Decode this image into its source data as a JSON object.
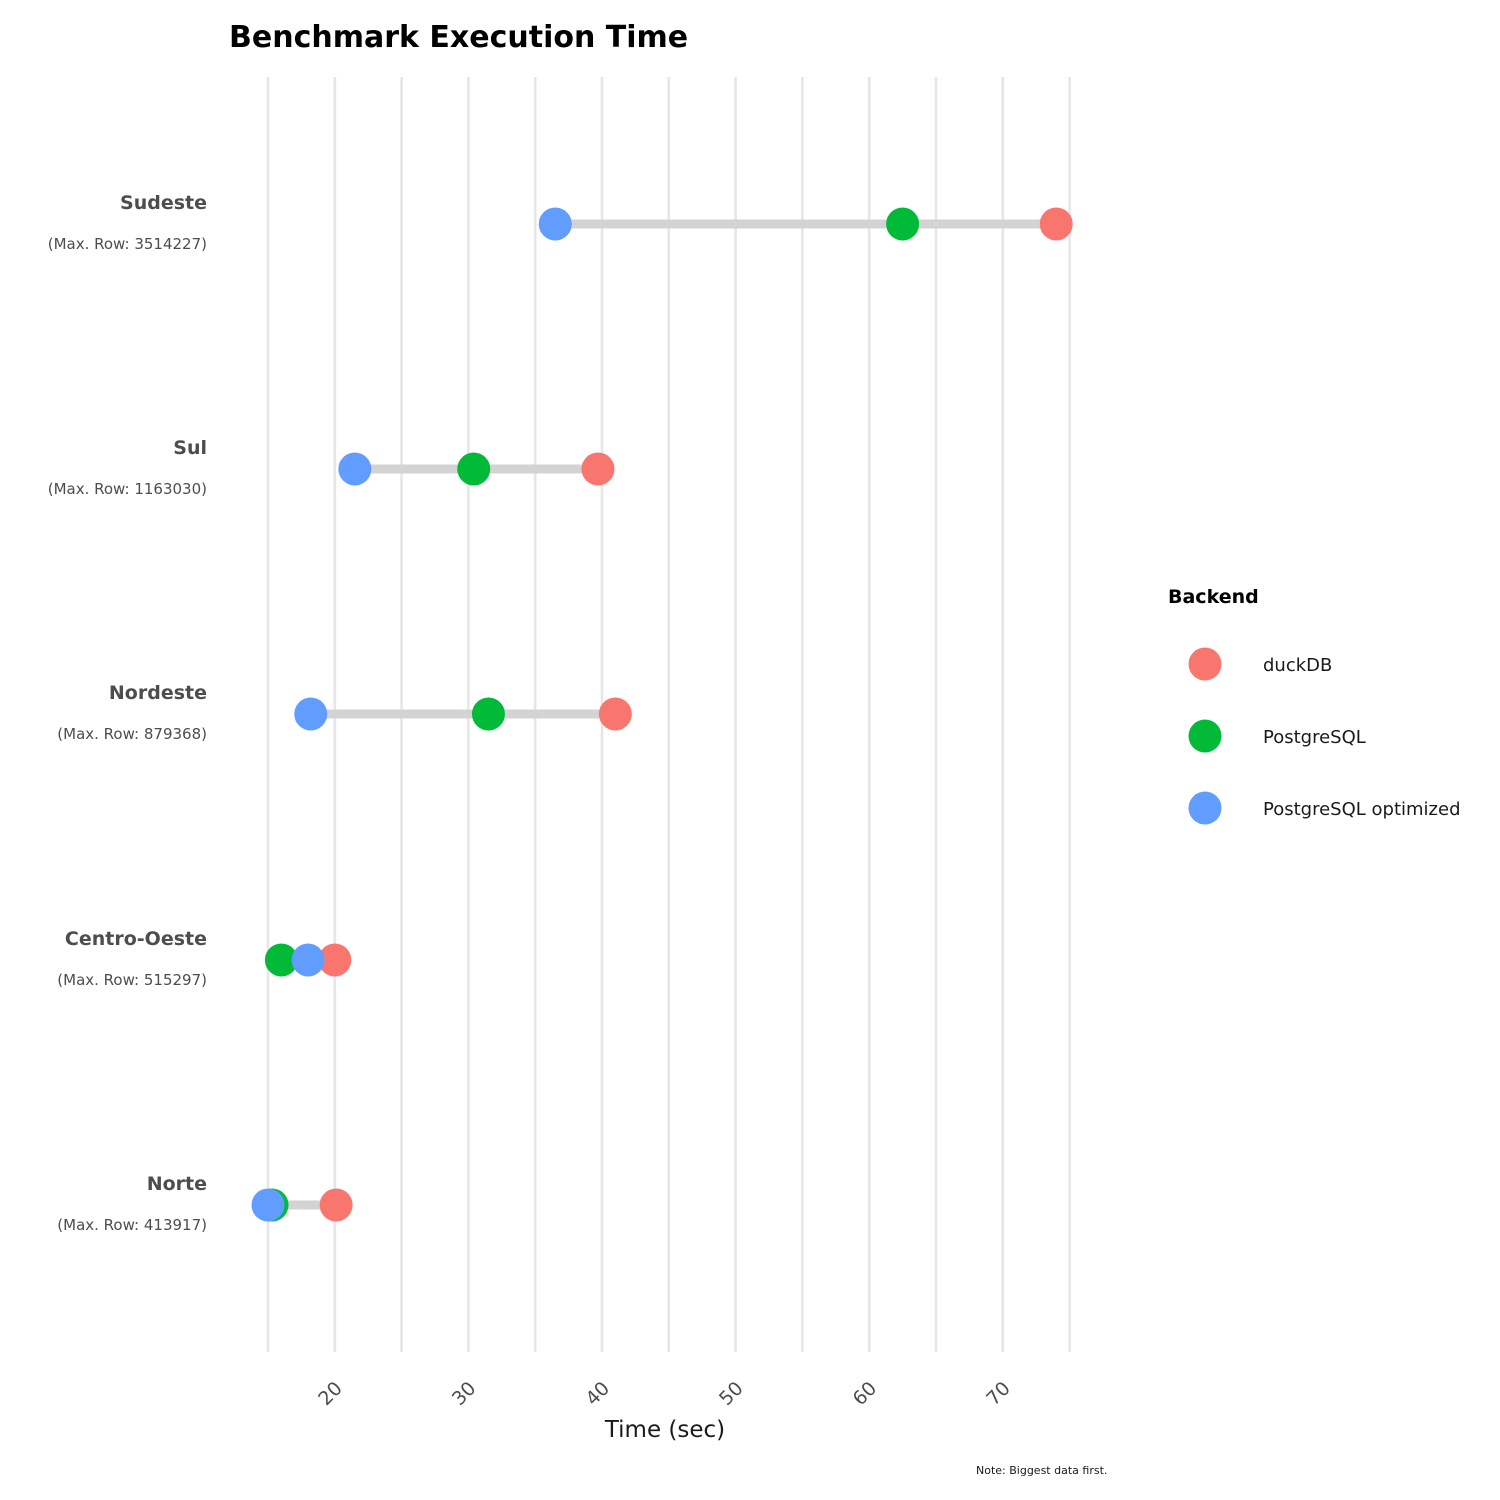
{
  "chart_data": {
    "type": "dumbbell",
    "title": "Benchmark Execution Time",
    "xlabel": "Time (sec)",
    "ylabel": "",
    "xlim": [
      15,
      75
    ],
    "x_ticks": [
      20,
      30,
      40,
      50,
      60,
      70
    ],
    "x_minor_ticks": [
      15,
      25,
      35,
      45,
      55,
      65,
      75
    ],
    "caption": "Note: Biggest data first.",
    "legend": {
      "title": "Backend",
      "placement": "right"
    },
    "categories": [
      {
        "name": "Sudeste",
        "sub": "(Max. Row: 3514227)"
      },
      {
        "name": "Sul",
        "sub": "(Max. Row: 1163030)"
      },
      {
        "name": "Nordeste",
        "sub": "(Max. Row: 879368)"
      },
      {
        "name": "Centro-Oeste",
        "sub": "(Max. Row: 515297)"
      },
      {
        "name": "Norte",
        "sub": "(Max. Row: 413917)"
      }
    ],
    "series": [
      {
        "name": "duckDB",
        "color": "#F8766D",
        "values": [
          74.0,
          39.7,
          41.0,
          20.0,
          20.1
        ]
      },
      {
        "name": "PostgreSQL",
        "color": "#00BA38",
        "values": [
          62.5,
          30.4,
          31.5,
          16.0,
          15.3
        ]
      },
      {
        "name": "PostgreSQL optimized",
        "color": "#619CFF",
        "values": [
          36.5,
          21.5,
          18.2,
          18.0,
          15.0
        ]
      }
    ],
    "grid": {
      "vertical": true,
      "horizontal": false
    },
    "grid_color": "#e6e6e6",
    "segment_color": "#d3d3d3"
  }
}
